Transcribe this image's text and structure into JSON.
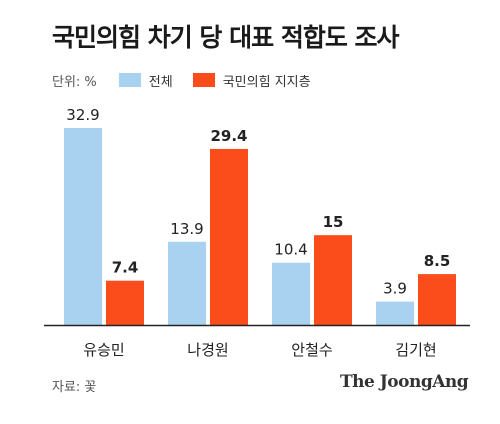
{
  "title": "국민의힘 차기 당 대표 적합도 조사",
  "unit_label": "단위: %",
  "source": "자료: 꽃",
  "brand": "The JoongAng",
  "colors": {
    "all": "#a9d1f0",
    "ppp": "#fb4d1b",
    "axis": "#222222"
  },
  "chart_data": {
    "type": "bar",
    "title": "국민의힘 차기 당 대표 적합도 조사",
    "categories": [
      "유승민",
      "나경원",
      "안철수",
      "김기현"
    ],
    "series": [
      {
        "name": "전체",
        "values": [
          32.9,
          13.9,
          10.4,
          3.9
        ]
      },
      {
        "name": "국민의힘 지지층",
        "values": [
          7.4,
          29.4,
          15,
          8.5
        ]
      }
    ],
    "value_labels": [
      [
        "32.9",
        "13.9",
        "10.4",
        "3.9"
      ],
      [
        "7.4",
        "29.4",
        "15",
        "8.5"
      ]
    ],
    "ylim": [
      0,
      32.9
    ],
    "grid": false,
    "legend": "top-left"
  }
}
